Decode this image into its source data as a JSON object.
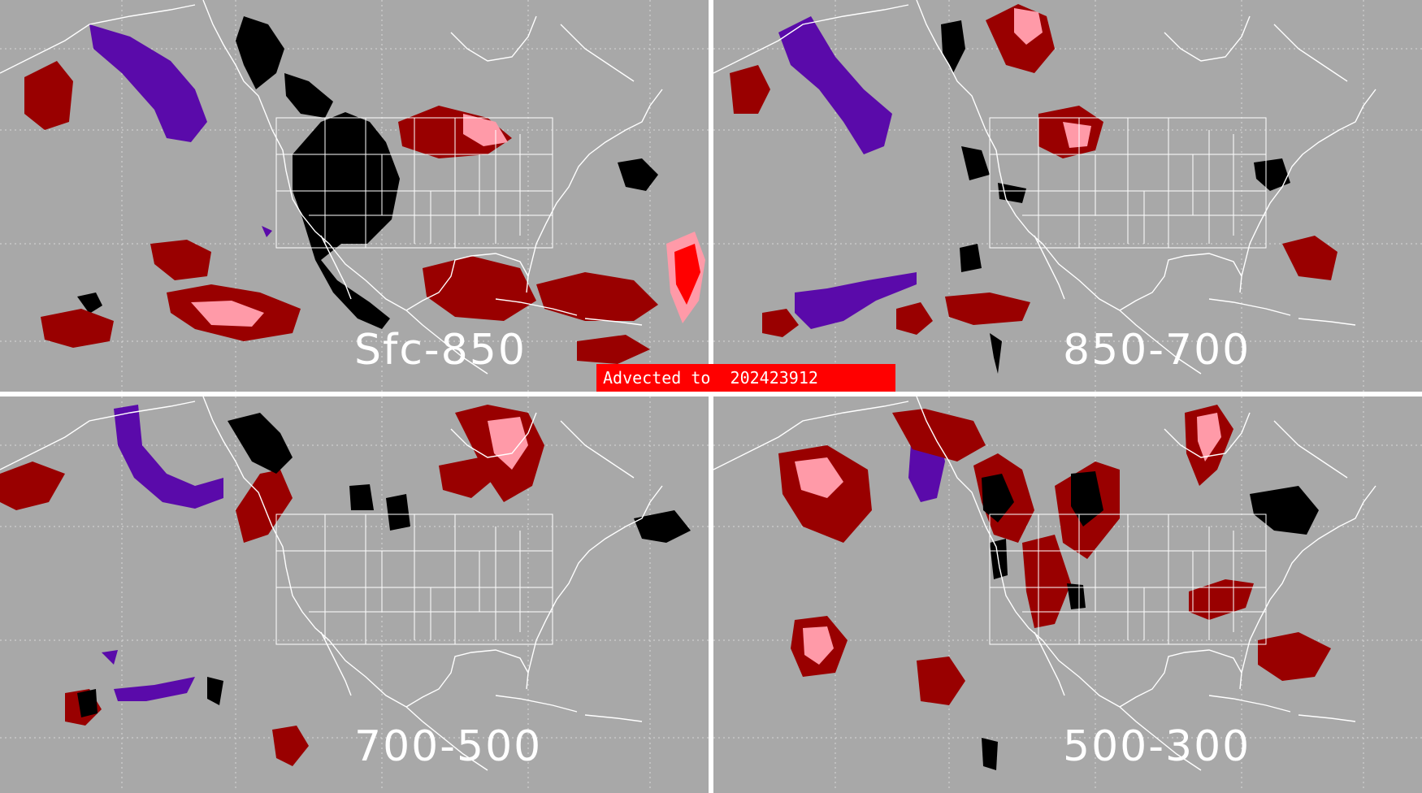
{
  "banner": {
    "text": "Advected to  202423912",
    "color": "#ff0000"
  },
  "panels": [
    {
      "label": "Sfc-850"
    },
    {
      "label": "850-700"
    },
    {
      "label": "700-500"
    },
    {
      "label": "500-300"
    }
  ],
  "colors": {
    "background": "#a8a8a8",
    "map_lines": "#ffffff",
    "grid": "#d8d8d8",
    "dark_red": "#990000",
    "pink": "#ff9aa8",
    "bright_red": "#ff0000",
    "purple": "#5a0aaa",
    "black": "#000000"
  }
}
